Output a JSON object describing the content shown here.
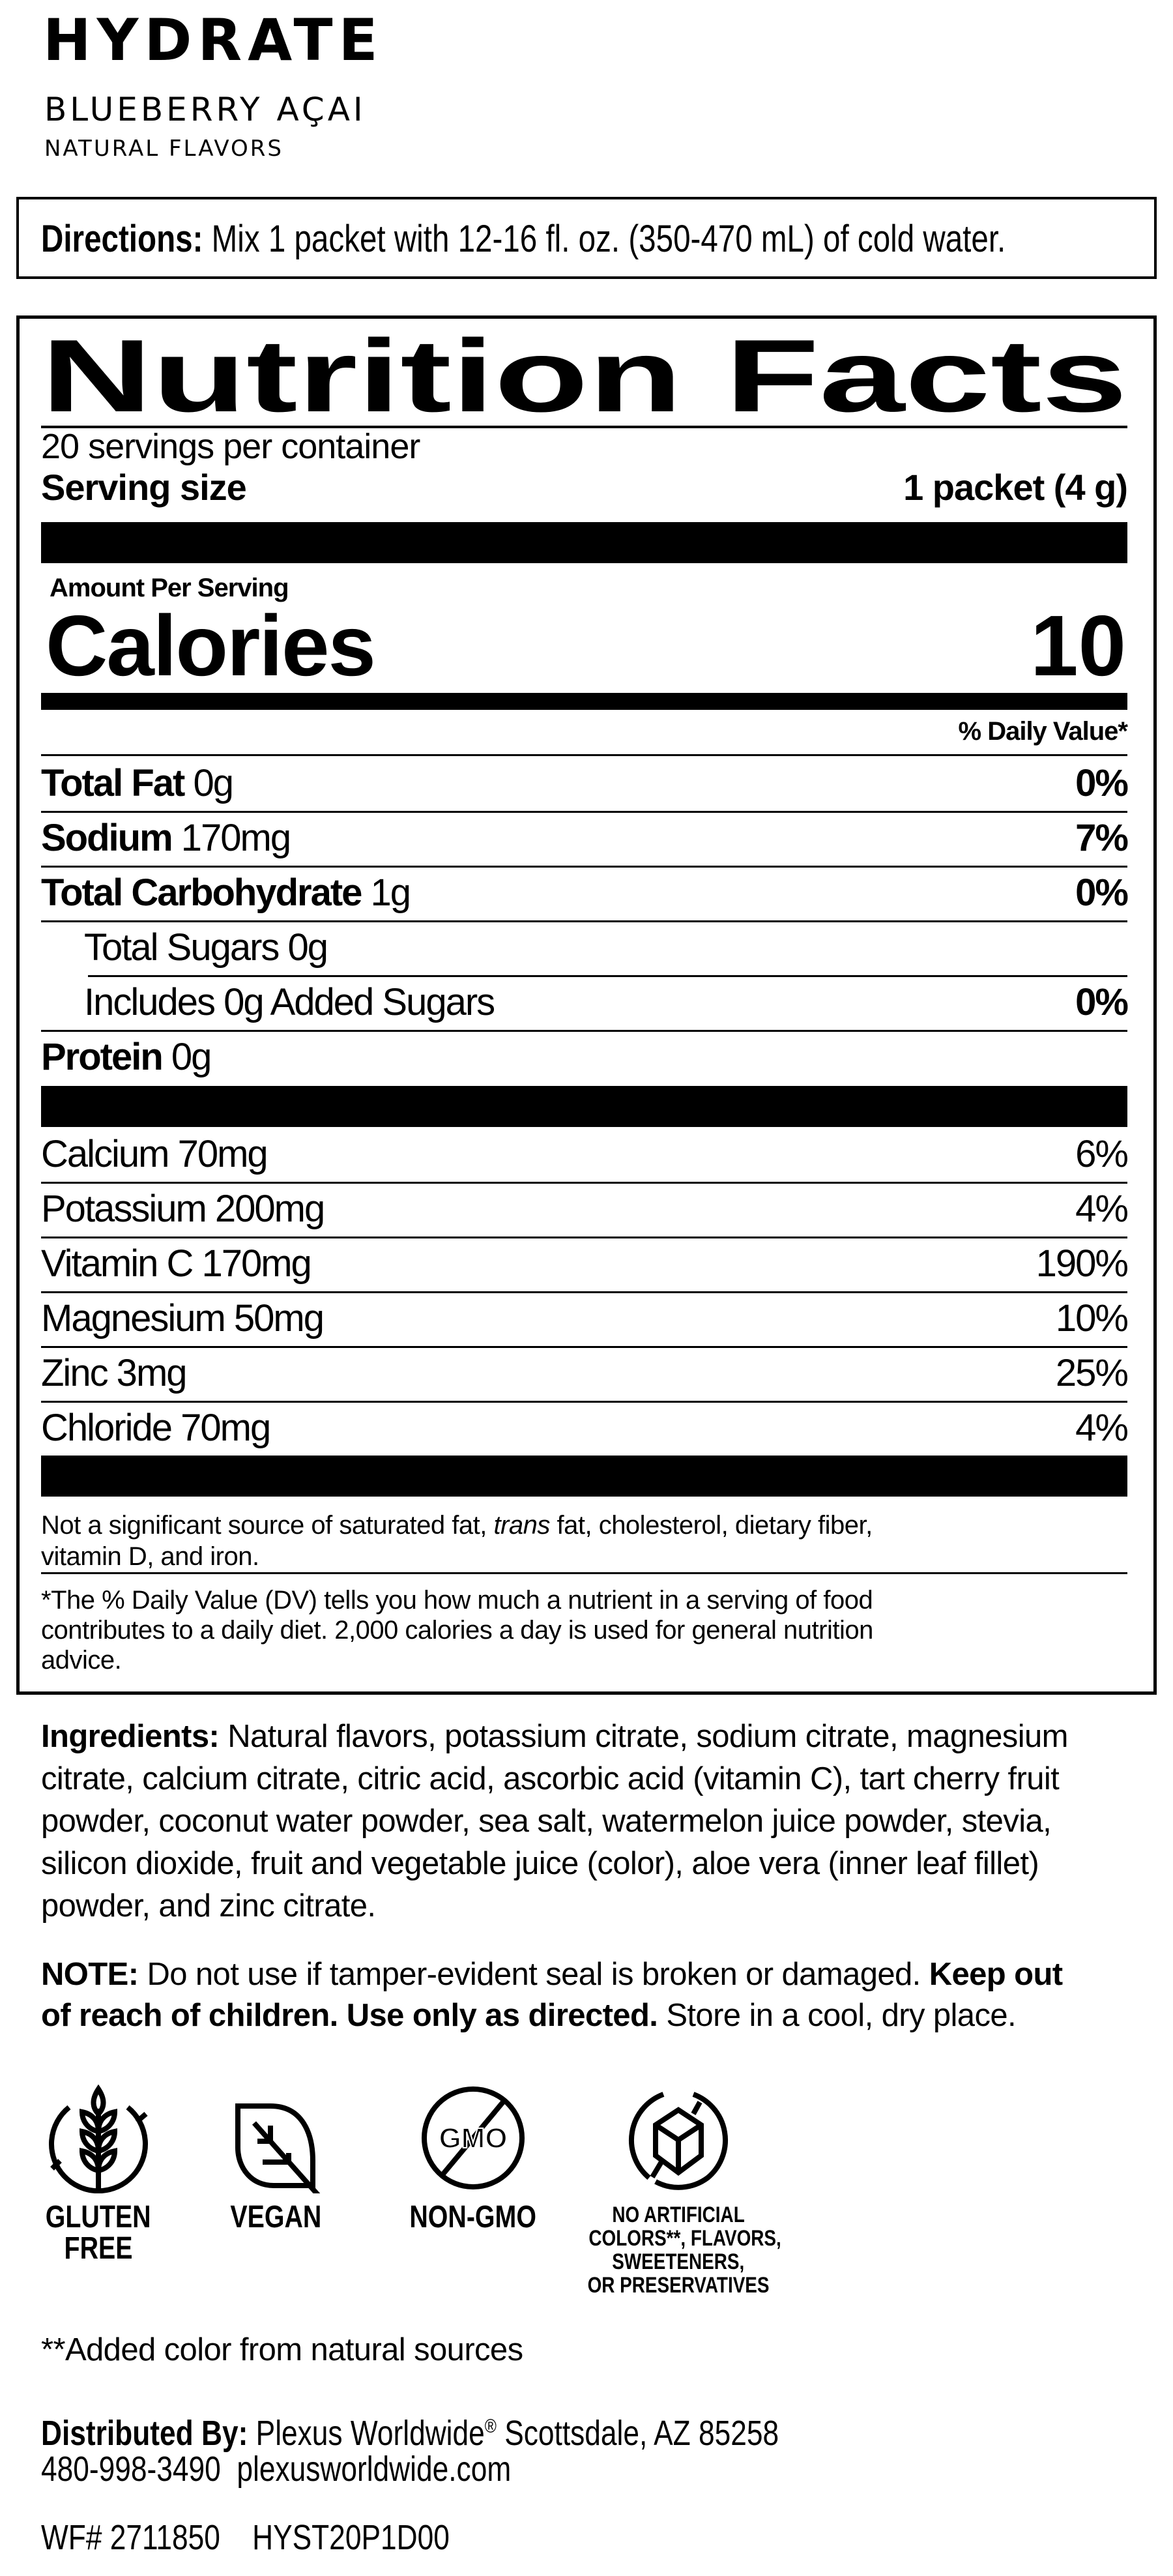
{
  "brand": {
    "product": "HYDRATE",
    "flavor": "BLUEBERRY AÇAI",
    "subtitle": "NATURAL FLAVORS"
  },
  "directions": {
    "label": "Directions:",
    "text": " Mix 1 packet with 12-16 fl. oz. (350-470 mL) of cold water."
  },
  "nutrition": {
    "title": "Nutrition Facts",
    "servings_per_container": "20 servings per container",
    "serving_size_label": "Serving size",
    "serving_size_value": "1 packet (4 g)",
    "amount_per_serving": "Amount Per Serving",
    "calories_label": "Calories",
    "calories_value": "10",
    "dv_header": "% Daily Value*",
    "nutrients": [
      {
        "name": "Total Fat",
        "amount": " 0g",
        "dv": "0%"
      },
      {
        "name": "Sodium",
        "amount": " 170mg",
        "dv": "7%"
      },
      {
        "name": "Total Carbohydrate",
        "amount": " 1g",
        "dv": "0%"
      },
      {
        "name": "",
        "amount": "Total Sugars 0g",
        "dv": ""
      },
      {
        "name": "",
        "amount": "Includes 0g Added Sugars",
        "dv": "0%"
      },
      {
        "name": "Protein",
        "amount": " 0g",
        "dv": ""
      }
    ],
    "vitamins": [
      {
        "name": "Calcium 70mg",
        "dv": "6%"
      },
      {
        "name": "Potassium 200mg",
        "dv": "4%"
      },
      {
        "name": "Vitamin C 170mg",
        "dv": "190%"
      },
      {
        "name": "Magnesium 50mg",
        "dv": "10%"
      },
      {
        "name": "Zinc 3mg",
        "dv": "25%"
      },
      {
        "name": "Chloride 70mg",
        "dv": "4%"
      }
    ],
    "footnote_1": {
      "a": "Not a significant source of saturated fat, ",
      "italic": "trans",
      "b": " fat, cholesterol, dietary fiber,",
      "line2": "vitamin D, and iron."
    },
    "footnote_2": [
      "*The % Daily Value (DV) tells you how much a nutrient in a serving of food",
      "contributes to a daily diet. 2,000 calories a day is used for general nutrition",
      "advice."
    ]
  },
  "ingredients": {
    "label": "Ingredients:",
    "lines": [
      " Natural flavors, potassium citrate, sodium citrate, magnesium",
      "citrate, calcium citrate, citric acid, ascorbic acid (vitamin C), tart cherry fruit",
      "powder, coconut water powder, sea salt, watermelon juice powder, stevia,",
      "silicon dioxide, fruit and vegetable juice (color), aloe vera (inner leaf fillet)",
      "powder, and zinc citrate."
    ]
  },
  "note": {
    "label": "NOTE:",
    "text1": " Do not use if tamper-evident seal is broken or damaged. ",
    "bold1": "Keep out",
    "bold2": "of reach of children. Use only as directed.",
    "text2": " Store in a cool, dry place."
  },
  "badges": [
    {
      "icon": "gluten-free-wheat-icon",
      "lines": [
        "GLUTEN",
        "FREE"
      ]
    },
    {
      "icon": "vegan-leaf-icon",
      "lines": [
        "VEGAN"
      ]
    },
    {
      "icon": "non-gmo-icon",
      "icon_text": "GMO",
      "lines": [
        "NON-GMO"
      ]
    },
    {
      "icon": "no-artificial-cube-icon",
      "lines": [
        "NO ARTIFICIAL",
        "COLORS**, FLAVORS,",
        "SWEETENERS,",
        "OR PRESERVATIVES"
      ]
    }
  ],
  "added_color_note": "**Added color from natural sources",
  "distributor": {
    "label": "Distributed By:",
    "name": " Plexus Worldwide",
    "reg": "®",
    "address": " Scottsdale, AZ 85258",
    "phone": "480-998-3490",
    "website": "plexusworldwide.com"
  },
  "codes": {
    "wf": "WF# 2711850",
    "sku": "HYST20P1D00"
  }
}
